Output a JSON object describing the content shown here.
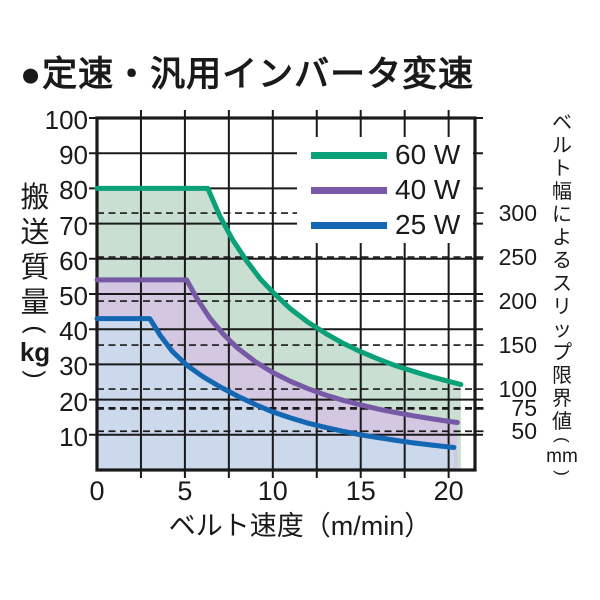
{
  "title": "●定速・汎用インバータ変速",
  "colors": {
    "ink": "#1a1a1a",
    "background": "#ffffff",
    "legend_background": "#ffffff"
  },
  "chart_data": {
    "type": "area",
    "title": "定速・汎用インバータ変速",
    "grid": true,
    "x_axis": {
      "label": "ベルト速度（m/min）",
      "ticks": [
        0,
        5,
        10,
        15,
        20
      ],
      "grid_step": 2.5,
      "range": [
        0,
        21.5
      ],
      "unit": "m/min"
    },
    "y_axis_left": {
      "label": "搬送質量（kg）",
      "label_chars": [
        "搬",
        "送",
        "質",
        "量",
        "(",
        "kg",
        ")"
      ],
      "ticks": [
        100,
        90,
        80,
        70,
        60,
        50,
        40,
        30,
        20,
        10
      ],
      "range": [
        0,
        100
      ],
      "unit": "kg"
    },
    "y_axis_right": {
      "label": "ベルト幅によるスリップ限界値（mm）",
      "label_chars": [
        "ベ",
        "ル",
        "ト",
        "幅",
        "に",
        "よ",
        "る",
        "ス",
        "リ",
        "ッ",
        "プ",
        "限",
        "界",
        "値",
        "(",
        "mm",
        ")"
      ],
      "unit": "mm",
      "note": "dashed horizontal lines = slip limit by belt width",
      "ticks": [
        {
          "mm": 300,
          "kg": 73
        },
        {
          "mm": 250,
          "kg": 60.5
        },
        {
          "mm": 200,
          "kg": 48
        },
        {
          "mm": 150,
          "kg": 35.5
        },
        {
          "mm": 100,
          "kg": 23
        },
        {
          "mm": 75,
          "kg": 17.5
        },
        {
          "mm": 50,
          "kg": 11
        }
      ]
    },
    "legend": {
      "position": "top-right",
      "items": [
        "60 W",
        "40 W",
        "25 W"
      ]
    },
    "series": [
      {
        "name": "60 W",
        "color": "#0aa178",
        "fill": "#c9dfd1",
        "flat_load_kg": 80,
        "points": [
          [
            0,
            80
          ],
          [
            6.3,
            80
          ],
          [
            7,
            72
          ],
          [
            7.7,
            65.5
          ],
          [
            8.5,
            59.5
          ],
          [
            9.3,
            54.2
          ],
          [
            10.1,
            50
          ],
          [
            11,
            45.8
          ],
          [
            12,
            42
          ],
          [
            13,
            38.8
          ],
          [
            14,
            36
          ],
          [
            15,
            33.6
          ],
          [
            16,
            31.5
          ],
          [
            17,
            29.6
          ],
          [
            18,
            28
          ],
          [
            19,
            26.5
          ],
          [
            20,
            25.2
          ],
          [
            20.7,
            24.3
          ]
        ]
      },
      {
        "name": "40 W",
        "color": "#7859a6",
        "fill": "#d4c7e1",
        "flat_load_kg": 54,
        "points": [
          [
            0,
            54
          ],
          [
            5.1,
            54
          ],
          [
            5.7,
            48.6
          ],
          [
            6.4,
            43.3
          ],
          [
            7.2,
            38.5
          ],
          [
            8,
            34.6
          ],
          [
            9,
            30.8
          ],
          [
            10,
            27.7
          ],
          [
            11,
            25.2
          ],
          [
            12,
            23.1
          ],
          [
            13,
            21.3
          ],
          [
            14,
            19.8
          ],
          [
            15,
            18.5
          ],
          [
            16,
            17.3
          ],
          [
            17,
            16.3
          ],
          [
            18,
            15.4
          ],
          [
            19,
            14.6
          ],
          [
            20,
            13.8
          ],
          [
            20.5,
            13.5
          ]
        ]
      },
      {
        "name": "25 W",
        "color": "#1467b2",
        "fill": "#ccd9ec",
        "flat_load_kg": 43,
        "points": [
          [
            0,
            43
          ],
          [
            3,
            43
          ],
          [
            3.6,
            38.2
          ],
          [
            4.3,
            33.6
          ],
          [
            5.1,
            29.8
          ],
          [
            6,
            26.6
          ],
          [
            7,
            23.6
          ],
          [
            8,
            21
          ],
          [
            9,
            18.6
          ],
          [
            10,
            16.5
          ],
          [
            11,
            14.8
          ],
          [
            12,
            13.3
          ],
          [
            13,
            12.1
          ],
          [
            14,
            11
          ],
          [
            15,
            10
          ],
          [
            16,
            9.2
          ],
          [
            17,
            8.4
          ],
          [
            18,
            7.7
          ],
          [
            19,
            7.1
          ],
          [
            20.3,
            6.4
          ]
        ]
      }
    ]
  }
}
